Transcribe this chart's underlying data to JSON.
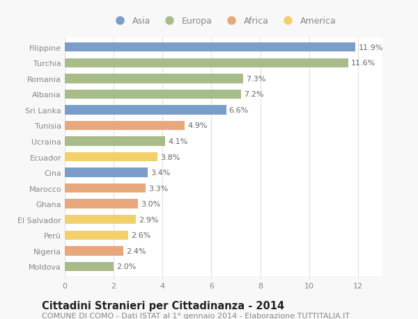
{
  "categories": [
    "Filippine",
    "Turchia",
    "Romania",
    "Albania",
    "Sri Lanka",
    "Tunisia",
    "Ucraina",
    "Ecuador",
    "Cina",
    "Marocco",
    "Ghana",
    "El Salvador",
    "Perù",
    "Nigeria",
    "Moldova"
  ],
  "values": [
    11.9,
    11.6,
    7.3,
    7.2,
    6.6,
    4.9,
    4.1,
    3.8,
    3.4,
    3.3,
    3.0,
    2.9,
    2.6,
    2.4,
    2.0
  ],
  "continents": [
    "Asia",
    "Europa",
    "Europa",
    "Europa",
    "Asia",
    "Africa",
    "Europa",
    "America",
    "Asia",
    "Africa",
    "Africa",
    "America",
    "America",
    "Africa",
    "Europa"
  ],
  "colors": {
    "Asia": "#7B9DC9",
    "Europa": "#A8BC8A",
    "Africa": "#E8A87C",
    "America": "#F2D06B"
  },
  "legend_order": [
    "Asia",
    "Europa",
    "Africa",
    "America"
  ],
  "title": "Cittadini Stranieri per Cittadinanza - 2014",
  "subtitle": "COMUNE DI COMO - Dati ISTAT al 1° gennaio 2014 - Elaborazione TUTTITALIA.IT",
  "xlim": [
    0,
    13
  ],
  "xticks": [
    0,
    2,
    4,
    6,
    8,
    10,
    12
  ],
  "bg_color": "#f8f8f8",
  "plot_bg_color": "#ffffff",
  "grid_color": "#e0e0e0",
  "tick_label_color": "#888888",
  "value_label_color": "#666666",
  "bar_height": 0.6,
  "label_fontsize": 8.0,
  "value_fontsize": 8.0,
  "title_fontsize": 10.5,
  "subtitle_fontsize": 8.0,
  "legend_fontsize": 9.0
}
